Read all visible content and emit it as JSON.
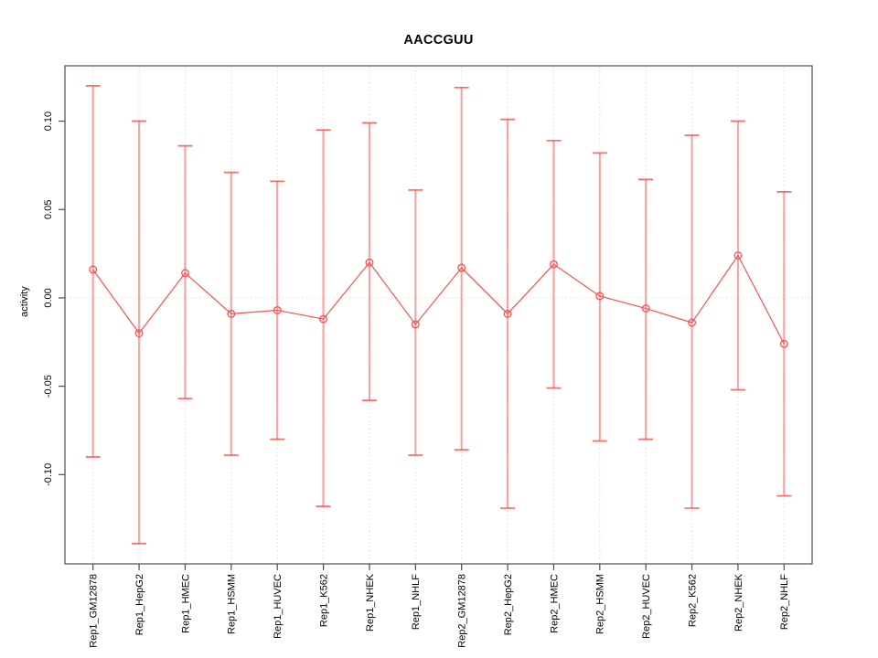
{
  "page": {
    "background": "#ffffff"
  },
  "chart_data": {
    "type": "line",
    "title": "AACCGUU",
    "xlabel": "",
    "ylabel": "activity",
    "legend": "none",
    "grid": "vertical dotted gridline at each category; horizontal dotted line at y=0",
    "point_style": "open-circle",
    "error_bars": true,
    "categories": [
      "Rep1_GM12878",
      "Rep1_HepG2",
      "Rep1_HMEC",
      "Rep1_HSMM",
      "Rep1_HUVEC",
      "Rep1_K562",
      "Rep1_NHEK",
      "Rep1_NHLF",
      "Rep2_GM12878",
      "Rep2_HepG2",
      "Rep2_HMEC",
      "Rep2_HSMM",
      "Rep2_HUVEC",
      "Rep2_K562",
      "Rep2_NHEK",
      "Rep2_NHLF"
    ],
    "series": [
      {
        "name": "activity",
        "values": [
          0.016,
          -0.02,
          0.014,
          -0.009,
          -0.007,
          -0.012,
          0.02,
          -0.015,
          0.017,
          -0.009,
          0.019,
          0.001,
          -0.006,
          -0.014,
          0.024,
          -0.026
        ],
        "error_upper": [
          0.12,
          0.1,
          0.086,
          0.071,
          0.066,
          0.095,
          0.099,
          0.061,
          0.119,
          0.101,
          0.089,
          0.082,
          0.067,
          0.092,
          0.1,
          0.06
        ],
        "error_lower": [
          -0.09,
          -0.139,
          -0.057,
          -0.089,
          -0.08,
          -0.118,
          -0.058,
          -0.089,
          -0.086,
          -0.119,
          -0.051,
          -0.081,
          -0.08,
          -0.119,
          -0.052,
          -0.112
        ]
      }
    ],
    "yticks": [
      0.1,
      0.05,
      0.0,
      -0.05,
      -0.1
    ],
    "ytick_labels": [
      "0.10",
      "0.05",
      "0.00",
      "-0.05",
      "-0.10"
    ],
    "ylim": [
      -0.1505,
      0.1313
    ],
    "colors": {
      "series_red": "#f4534f",
      "error_bar_stem": "#f4534f80",
      "grid_gray": "#d9d9d9",
      "zero_line_gray": "#e2e2e2",
      "axis": "#4d4d4d",
      "text": "#000000"
    }
  }
}
